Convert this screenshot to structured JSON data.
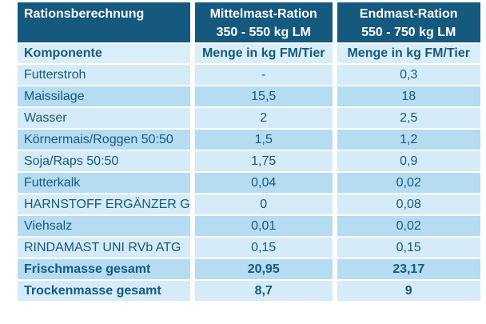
{
  "table": {
    "title": "Rationsberechnung",
    "header": {
      "col1": "Rationsberechnung",
      "col2_line1": "Mittelmast-Ration",
      "col2_line2": "350 - 550 kg LM",
      "col3_line1": "Endmast-Ration",
      "col3_line2": "550 - 750 kg LM"
    },
    "subheader": {
      "col1": "Komponente",
      "col2": "Menge in kg FM/Tier",
      "col3": "Menge in kg FM/Tier"
    },
    "rows": [
      {
        "komponente": "Futterstroh",
        "mittelmast": "-",
        "endmast": "0,3"
      },
      {
        "komponente": "Maissilage",
        "mittelmast": "15,5",
        "endmast": "18"
      },
      {
        "komponente": "Wasser",
        "mittelmast": "2",
        "endmast": "2,5"
      },
      {
        "komponente": "Körnermais/Roggen 50:50",
        "mittelmast": "1,5",
        "endmast": "1,2"
      },
      {
        "komponente": "Soja/Raps 50:50",
        "mittelmast": "1,75",
        "endmast": "0,9"
      },
      {
        "komponente": "Futterkalk",
        "mittelmast": "0,04",
        "endmast": "0,02"
      },
      {
        "komponente": "HARNSTOFF ERGÄNZER G",
        "mittelmast": "0",
        "endmast": "0,08"
      },
      {
        "komponente": "Viehsalz",
        "mittelmast": "0,01",
        "endmast": "0,02"
      },
      {
        "komponente": "RINDAMAST UNI RVb ATG",
        "mittelmast": "0,15",
        "endmast": "0,15"
      },
      {
        "komponente": "Frischmasse gesamt",
        "mittelmast": "20,95",
        "endmast": "23,17"
      },
      {
        "komponente": "Trockenmasse gesamt",
        "mittelmast": "8,7",
        "endmast": "9"
      }
    ]
  },
  "colors": {
    "header_bg": "#15597e",
    "header_text": "#ffffff",
    "row_light": "#d6ebf8",
    "row_medium": "#b5dcf0",
    "subheader_bg": "#daeef9",
    "text_blue": "#16597f",
    "page_bg": "#ffffff"
  }
}
